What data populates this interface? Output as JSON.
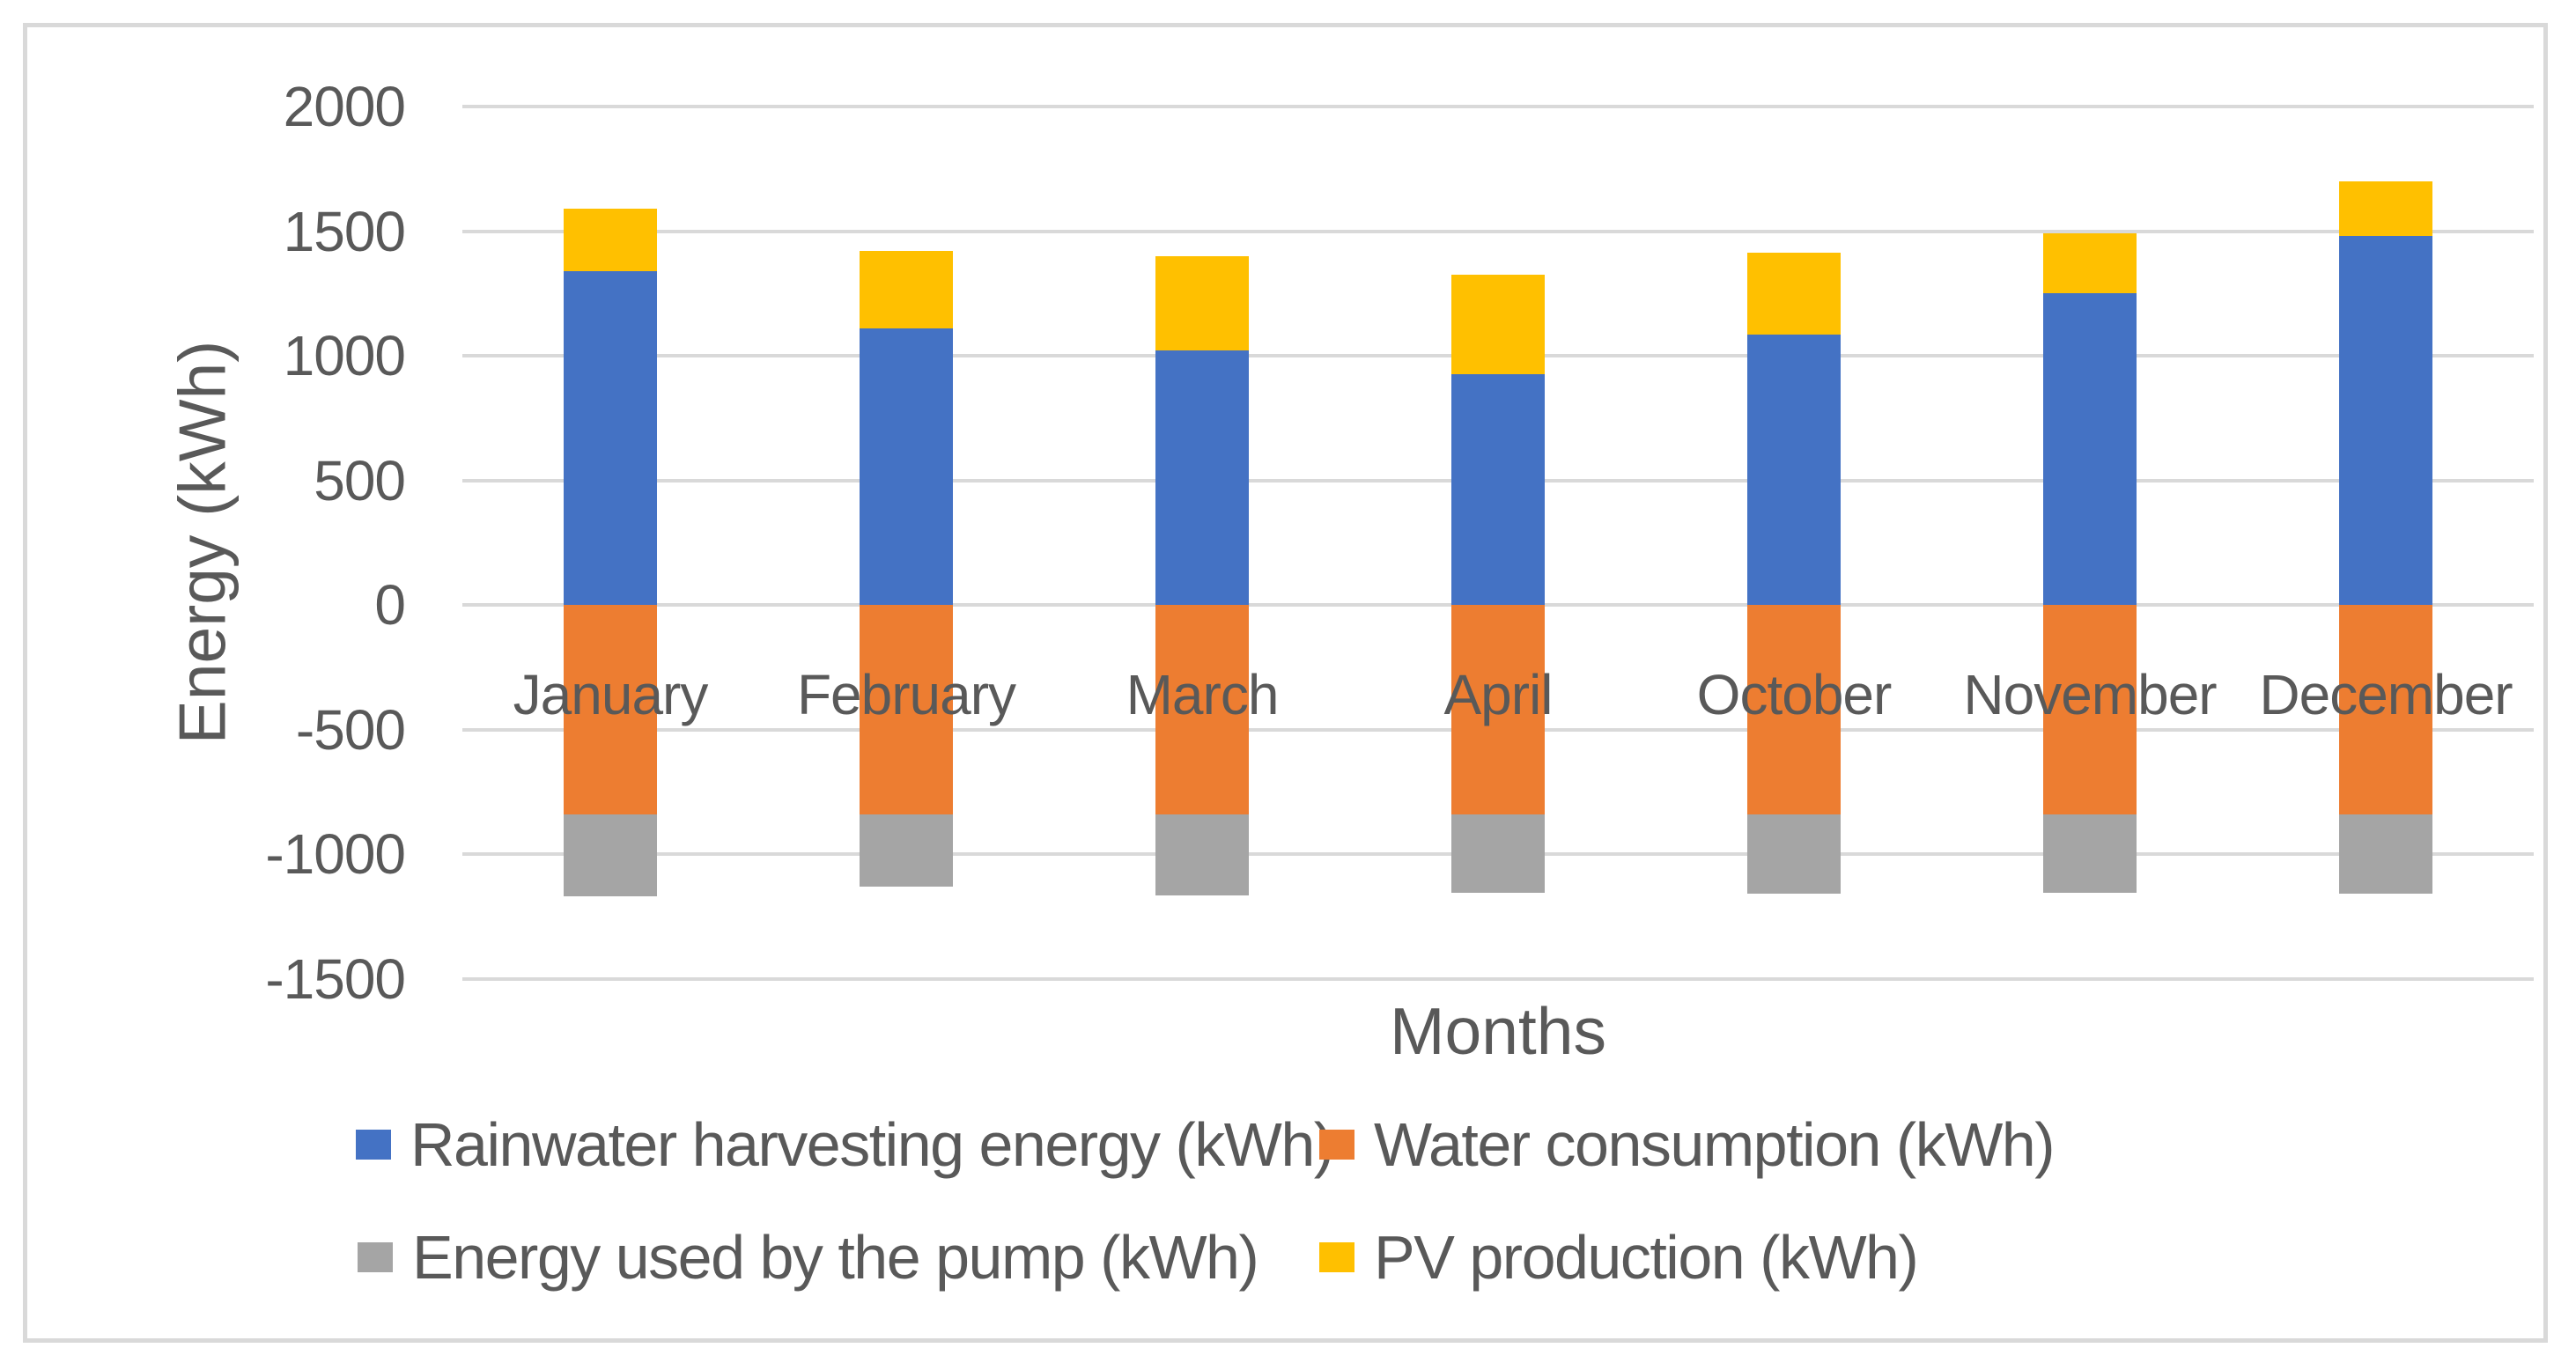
{
  "chart_data": {
    "type": "bar",
    "variant": "stacked-column",
    "title": "",
    "xlabel": "Months",
    "ylabel": "Energy (kWh)",
    "categories": [
      "January",
      "February",
      "March",
      "April",
      "October",
      "November",
      "December"
    ],
    "series": [
      {
        "name": "Rainwater harvesting energy (kWh)",
        "color": "#4472C4",
        "values": [
          1340,
          1110,
          1020,
          925,
          1085,
          1250,
          1480
        ]
      },
      {
        "name": "Water consumption (kWh)",
        "color": "#ED7D31",
        "values": [
          -840,
          -840,
          -840,
          -840,
          -840,
          -840,
          -840
        ]
      },
      {
        "name": "Energy used by the pump (kWh)",
        "color": "#A5A5A5",
        "values": [
          -330,
          -290,
          -325,
          -315,
          -320,
          -315,
          -320
        ]
      },
      {
        "name": "PV production (kWh)",
        "color": "#FFC000",
        "values": [
          250,
          310,
          380,
          400,
          330,
          240,
          220
        ]
      }
    ],
    "y_ticks": [
      2000,
      1500,
      1000,
      500,
      0,
      -500,
      -1000,
      -1500
    ],
    "ylim": [
      -1500,
      2000
    ],
    "grid": true,
    "gridline_color": "#D9D9D9",
    "text_color": "#595959",
    "legend_position": "bottom",
    "legend_rows": [
      [
        "Rainwater harvesting energy (kWh)",
        "Water consumption (kWh)"
      ],
      [
        "Energy used by the pump (kWh)",
        "PV production (kWh)"
      ]
    ]
  }
}
